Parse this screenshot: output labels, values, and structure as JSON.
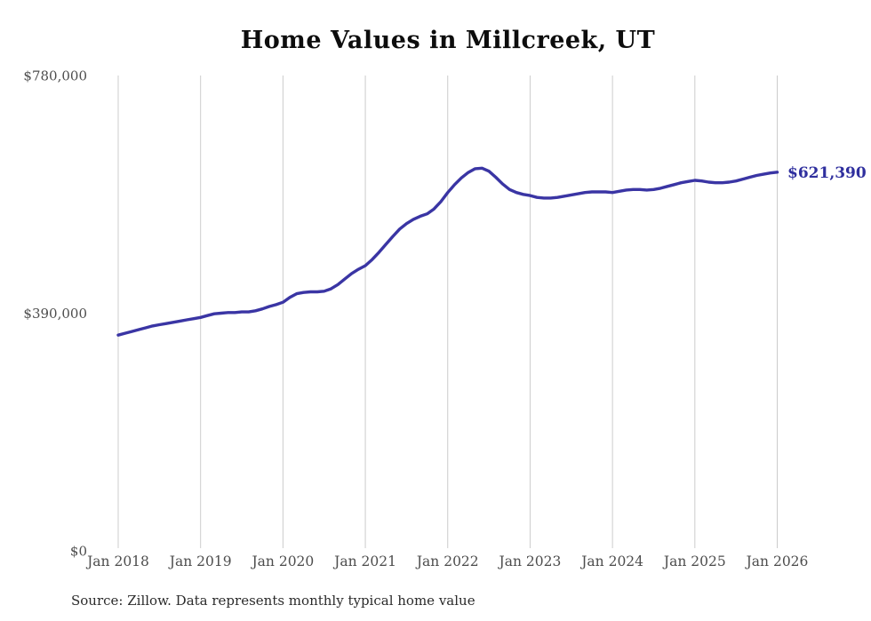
{
  "colors": {
    "line": "#3A35A4",
    "end_label": "#2F2F9E",
    "gridline": "#CCCCCC",
    "tick_text": "#4D4D4D",
    "title_text": "#0D0D0D",
    "source_text": "#2B2B2B"
  },
  "footer": {
    "source": "Source: Zillow. Data represents monthly typical home value"
  },
  "chart_data": {
    "type": "line",
    "title": "Home Values in Millcreek, UT",
    "xlabel": "",
    "ylabel": "",
    "legend": "none",
    "grid": "vertical-only",
    "ylim": [
      0,
      780000
    ],
    "y_ticks": [
      "$0",
      "$390,000",
      "$780,000"
    ],
    "y_tick_values": [
      0,
      390000,
      780000
    ],
    "x_ticks": [
      "Jan 2018",
      "Jan 2019",
      "Jan 2020",
      "Jan 2021",
      "Jan 2022",
      "Jan 2023",
      "Jan 2024",
      "Jan 2025",
      "Jan 2026"
    ],
    "frequency": "monthly",
    "start_month": "Jan 2018",
    "end_month": "Jan 2026",
    "end_value": 621390,
    "end_value_label": "$621,390",
    "series": [
      {
        "name": "Typical home value",
        "values": [
          354000,
          357000,
          360000,
          363000,
          366000,
          369000,
          371000,
          373000,
          375000,
          377000,
          379000,
          381000,
          383000,
          386000,
          389000,
          390000,
          391000,
          391000,
          392000,
          392000,
          394000,
          397000,
          401000,
          404000,
          408000,
          416000,
          422000,
          424000,
          425000,
          425000,
          426000,
          430000,
          437000,
          446000,
          455000,
          462000,
          468000,
          478000,
          490000,
          503000,
          516000,
          528000,
          537000,
          544000,
          549000,
          553000,
          561000,
          573000,
          588000,
          601000,
          612000,
          621000,
          627000,
          628000,
          623000,
          613000,
          602000,
          593000,
          588000,
          585000,
          583000,
          580000,
          579000,
          579000,
          580000,
          582000,
          584000,
          586000,
          588000,
          589000,
          589000,
          589000,
          588000,
          590000,
          592000,
          593000,
          593000,
          592000,
          593000,
          595000,
          598000,
          601000,
          604000,
          606000,
          608000,
          607000,
          605000,
          604000,
          604000,
          605000,
          607000,
          610000,
          613000,
          616000,
          618000,
          620000,
          621390
        ]
      }
    ]
  }
}
